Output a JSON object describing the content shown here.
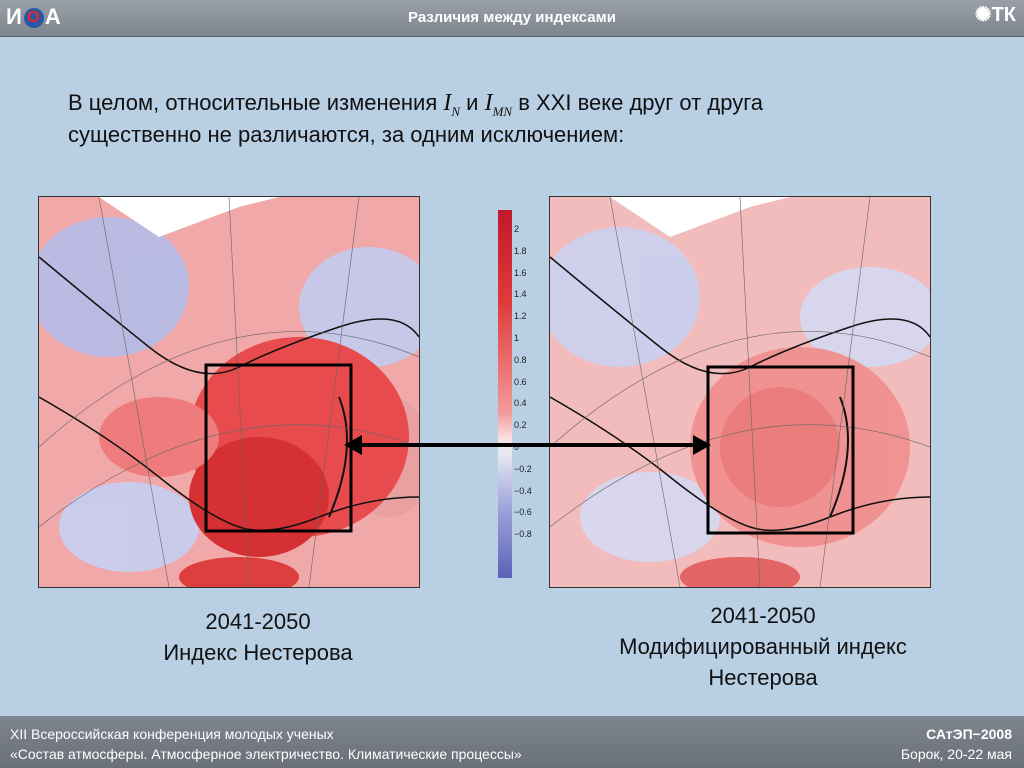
{
  "header": {
    "logo_left_text": "И",
    "logo_left_o": "О",
    "logo_left_suffix": "А",
    "title": "Различия между индексами",
    "logo_right_text": "ТК"
  },
  "intro": {
    "line1_a": "В целом, относительные изменения",
    "index_n": "I",
    "index_n_sub": "N",
    "and": "и",
    "index_mn": "I",
    "index_mn_sub": "MN",
    "line1_b": "в XXI веке друг от друга",
    "line2": "существенно не различаются, за одним исключением:"
  },
  "colorbar": {
    "ticks": [
      "2",
      "1.8",
      "1.6",
      "1.4",
      "1.2",
      "1",
      "0.8",
      "0.6",
      "0.4",
      "0.2",
      "0",
      "−0.2",
      "−0.4",
      "−0.6",
      "−0.8"
    ],
    "colors": {
      "max": "#c2182b",
      "zero": "#ecebf2",
      "min": "#5c62b6"
    }
  },
  "maps": {
    "left": {
      "period": "2041-2050",
      "name": "Индекс Нестерова"
    },
    "right": {
      "period": "2041-2050",
      "name_line1": "Модифицированный индекс",
      "name_line2": "Нестерова"
    }
  },
  "footer": {
    "left_line1": "XII Всероссийская конференция молодых ученых",
    "left_line2": "«Состав атмосферы. Атмосферное электричество. Климатические процессы»",
    "right_line1": "САтЭП−2008",
    "right_line2": "Борок, 20-22 мая"
  }
}
